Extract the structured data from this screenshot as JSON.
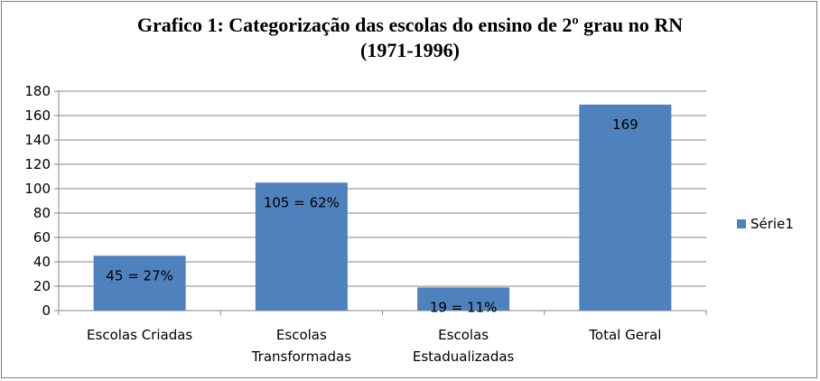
{
  "chart_data": {
    "type": "bar",
    "title_line1": "Grafico 1: Categorização  das escolas do ensino de 2º grau no RN",
    "title_line2": "(1971-1996)",
    "categories": [
      [
        "Escolas Criadas"
      ],
      [
        "Escolas",
        "Transformadas"
      ],
      [
        "Escolas",
        "Estadualizadas"
      ],
      [
        "Total Geral"
      ]
    ],
    "series": [
      {
        "name": "Série1",
        "values": [
          45,
          105,
          19,
          169
        ],
        "color": "#4f81bd"
      }
    ],
    "data_labels": [
      "45 = 27%",
      "105 = 62%",
      "19 = 11%",
      "169"
    ],
    "ylim": [
      0,
      180
    ],
    "yticks": [
      "0",
      "20",
      "40",
      "60",
      "80",
      "100",
      "120",
      "140",
      "160",
      "180"
    ],
    "grid": true,
    "legend_position": "right"
  }
}
